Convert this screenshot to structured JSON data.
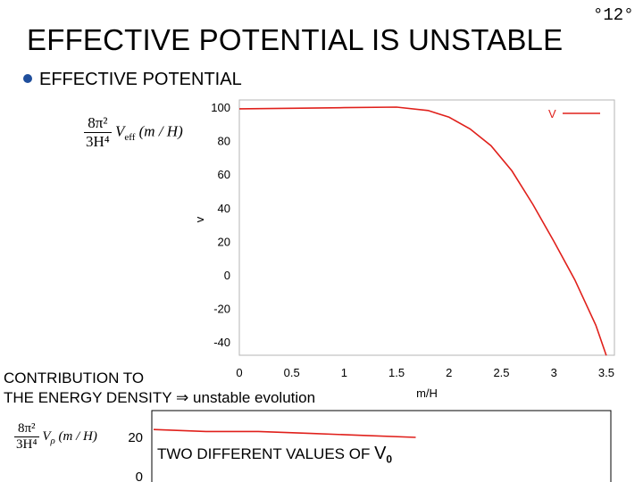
{
  "slide": {
    "number": "12",
    "title": "EFFECTIVE POTENTIAL IS UNSTABLE",
    "bullet": "EFFECTIVE POTENTIAL",
    "contribution_line1": "CONTRIBUTION TO",
    "contribution_line2_prefix": "THE ENERGY DENSITY",
    "arrow": "⇒",
    "contribution_line2_suffix": "unstable evolution",
    "two_values_text": "TWO DIFFERENT VALUES OF",
    "two_values_symbol": "V",
    "two_values_sub": "0"
  },
  "formula_top": {
    "num": "8π²",
    "den": "3H⁴",
    "body": "V",
    "sub": "eff",
    "arg": "(m / H)"
  },
  "formula_bottom": {
    "num": "8π²",
    "den": "3H⁴",
    "body": "V",
    "sub": "ρ",
    "arg": "(m / H)"
  },
  "chart_data": [
    {
      "type": "line",
      "xlabel": "m/H",
      "ylabel": "v",
      "xlim": [
        0,
        3.6
      ],
      "ylim": [
        -45,
        102
      ],
      "x_ticks": [
        "0",
        "0.5",
        "1",
        "1.5",
        "2",
        "2.5",
        "3",
        "3.5"
      ],
      "y_ticks": [
        "100",
        "80",
        "60",
        "40",
        "20",
        "0",
        "-20",
        "-40"
      ],
      "legend_position": "top-right",
      "series": [
        {
          "name": "V",
          "color": "#e0201b",
          "x": [
            0,
            0.5,
            1.0,
            1.5,
            1.8,
            2.0,
            2.2,
            2.4,
            2.6,
            2.8,
            3.0,
            3.2,
            3.4,
            3.5
          ],
          "y": [
            99,
            99.3,
            99.7,
            100,
            98,
            94,
            87,
            77,
            62,
            42,
            20,
            -3,
            -30,
            -48
          ]
        }
      ]
    },
    {
      "type": "line",
      "xlabel": "",
      "ylabel": "",
      "y_ticks": [
        "20",
        "0"
      ],
      "series": [
        {
          "color": "#e0201b",
          "x": [
            0,
            0.5,
            1.0,
            1.5,
            2.0,
            2.5
          ],
          "y": [
            24,
            23,
            23,
            22,
            21,
            20
          ]
        }
      ]
    }
  ]
}
